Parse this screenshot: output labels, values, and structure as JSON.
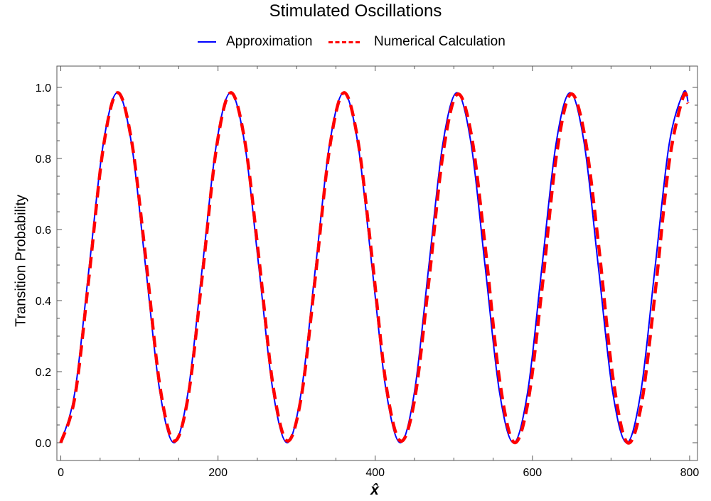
{
  "chart_data": {
    "type": "line",
    "title": "Stimulated Oscillations",
    "xlabel": "x̂",
    "ylabel": "Transition Probability",
    "xlim": [
      -5,
      810
    ],
    "ylim": [
      -0.05,
      1.06
    ],
    "x_ticks": [
      "0",
      "200",
      "400",
      "600",
      "800"
    ],
    "y_ticks": [
      "0.0",
      "0.2",
      "0.4",
      "0.6",
      "0.8",
      "1.0"
    ],
    "legend_position": "top-center",
    "grid": false,
    "series": [
      {
        "name": "Approximation",
        "color": "#0000ff",
        "style": "solid",
        "x": [
          0,
          18,
          36,
          54,
          72,
          90,
          108,
          126,
          144,
          162,
          180,
          198,
          216,
          234,
          252,
          270,
          288,
          306,
          324,
          342,
          360,
          378,
          396,
          414,
          432,
          450,
          468,
          486,
          504,
          522,
          540,
          558,
          576,
          594,
          612,
          630,
          648,
          666,
          684,
          702,
          720,
          738,
          756,
          774,
          792,
          798
        ],
        "y": [
          0.0,
          0.144,
          0.493,
          0.841,
          0.985,
          0.841,
          0.493,
          0.144,
          0.0,
          0.144,
          0.493,
          0.841,
          0.985,
          0.841,
          0.493,
          0.144,
          0.0,
          0.144,
          0.493,
          0.841,
          0.985,
          0.841,
          0.493,
          0.144,
          0.0,
          0.144,
          0.493,
          0.841,
          0.985,
          0.841,
          0.493,
          0.144,
          0.0,
          0.144,
          0.493,
          0.841,
          0.985,
          0.841,
          0.493,
          0.144,
          0.0,
          0.144,
          0.493,
          0.841,
          0.985,
          0.96
        ]
      },
      {
        "name": "Numerical Calculation",
        "color": "#ff0000",
        "style": "dashed",
        "x": [
          0,
          18,
          36,
          54,
          72,
          90,
          108,
          126,
          144,
          162,
          180,
          198,
          216,
          234,
          252,
          270,
          288,
          306,
          324,
          342,
          360,
          378,
          396,
          414,
          432,
          450,
          468,
          486,
          504,
          522,
          540,
          558,
          576,
          594,
          612,
          630,
          648,
          666,
          684,
          702,
          720,
          738,
          756,
          774,
          792,
          798
        ],
        "y": [
          0.0,
          0.13,
          0.47,
          0.83,
          0.985,
          0.85,
          0.52,
          0.16,
          0.005,
          0.13,
          0.47,
          0.83,
          0.985,
          0.85,
          0.52,
          0.16,
          0.005,
          0.13,
          0.47,
          0.83,
          0.985,
          0.85,
          0.52,
          0.16,
          0.005,
          0.12,
          0.45,
          0.81,
          0.98,
          0.87,
          0.55,
          0.18,
          0.002,
          0.11,
          0.43,
          0.8,
          0.98,
          0.87,
          0.56,
          0.19,
          0.002,
          0.1,
          0.42,
          0.79,
          0.975,
          0.955
        ]
      }
    ]
  }
}
